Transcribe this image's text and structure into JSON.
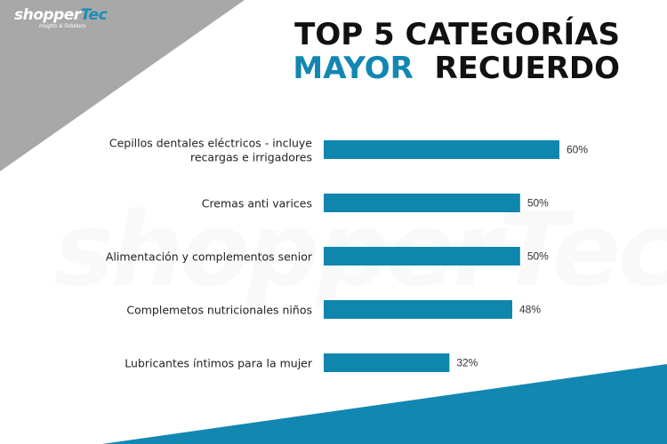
{
  "logo": {
    "brand": "shopper",
    "brand_accent": "Tec",
    "tagline": "Insights & Solutions",
    "watermark": "shopperTec"
  },
  "title": {
    "line1": "TOP 5 CATEGORÍAS",
    "line2_accent": "MAYOR",
    "line2_rest": "RECUERDO"
  },
  "colors": {
    "bar": "#0f86ad",
    "accent": "#1287b2",
    "corner": "#a8a8a8",
    "wedge": "#1287b2"
  },
  "chart_data": {
    "type": "bar",
    "orientation": "horizontal",
    "categories": [
      [
        "Cepillos dentales eléctricos - incluye",
        "recargas e irrigadores"
      ],
      [
        "Cremas anti varices"
      ],
      [
        "Alimentación y complementos senior"
      ],
      [
        "Complemetos nutricionales niños"
      ],
      [
        "Lubricantes íntimos para la mujer"
      ]
    ],
    "values": [
      60,
      50,
      50,
      48,
      32
    ],
    "value_labels": [
      "60%",
      "50%",
      "50%",
      "48%",
      "32%"
    ],
    "xlim": [
      0,
      100
    ],
    "grid": false,
    "legend": "none"
  }
}
